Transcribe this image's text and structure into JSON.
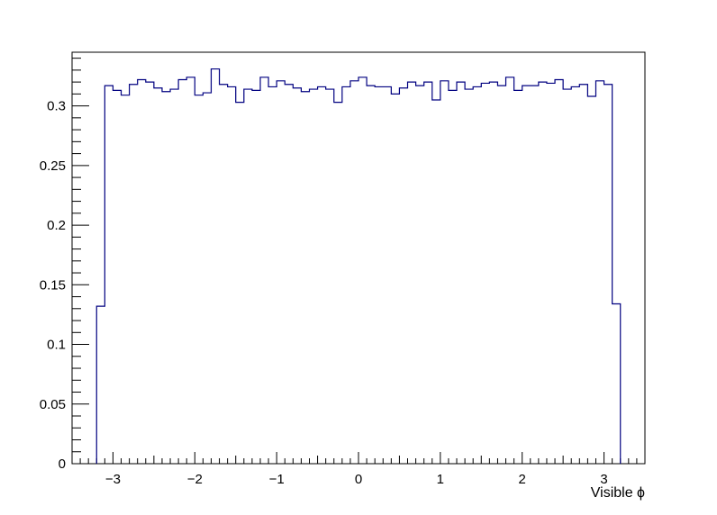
{
  "chart_data": {
    "type": "histogram",
    "xlabel": "Visible ϕ",
    "ylabel": "",
    "title": "",
    "xlim": [
      -3.5,
      3.5
    ],
    "ylim": [
      0,
      0.345
    ],
    "grid": false,
    "line_color": "#000080",
    "x_ticks": [
      -3,
      -2,
      -1,
      0,
      1,
      2,
      3
    ],
    "x_tick_labels": [
      "−3",
      "−2",
      "−1",
      "0",
      "1",
      "2",
      "3"
    ],
    "y_ticks": [
      0,
      0.05,
      0.1,
      0.15,
      0.2,
      0.25,
      0.3
    ],
    "y_tick_labels": [
      "0",
      "0.05",
      "0.1",
      "0.15",
      "0.2",
      "0.25",
      "0.3"
    ],
    "bin_edges": [
      -3.2,
      -3.1,
      -3.0,
      -2.9,
      -2.8,
      -2.7,
      -2.6,
      -2.5,
      -2.4,
      -2.3,
      -2.2,
      -2.1,
      -2.0,
      -1.9,
      -1.8,
      -1.7,
      -1.6,
      -1.5,
      -1.4,
      -1.3,
      -1.2,
      -1.1,
      -1.0,
      -0.9,
      -0.8,
      -0.7,
      -0.6,
      -0.5,
      -0.4,
      -0.3,
      -0.2,
      -0.1,
      0.0,
      0.1,
      0.2,
      0.3,
      0.4,
      0.5,
      0.6,
      0.7,
      0.8,
      0.9,
      1.0,
      1.1,
      1.2,
      1.3,
      1.4,
      1.5,
      1.6,
      1.7,
      1.8,
      1.9,
      2.0,
      2.1,
      2.2,
      2.3,
      2.4,
      2.5,
      2.6,
      2.7,
      2.8,
      2.9,
      3.0,
      3.1,
      3.2
    ],
    "values": [
      0.132,
      0.317,
      0.313,
      0.309,
      0.318,
      0.322,
      0.32,
      0.315,
      0.312,
      0.314,
      0.322,
      0.324,
      0.309,
      0.311,
      0.331,
      0.318,
      0.316,
      0.303,
      0.314,
      0.313,
      0.324,
      0.316,
      0.321,
      0.318,
      0.315,
      0.312,
      0.314,
      0.316,
      0.314,
      0.303,
      0.316,
      0.321,
      0.324,
      0.317,
      0.316,
      0.316,
      0.31,
      0.315,
      0.32,
      0.317,
      0.32,
      0.305,
      0.321,
      0.313,
      0.32,
      0.314,
      0.316,
      0.319,
      0.32,
      0.317,
      0.324,
      0.313,
      0.317,
      0.317,
      0.32,
      0.319,
      0.322,
      0.314,
      0.316,
      0.318,
      0.308,
      0.321,
      0.318,
      0.134
    ]
  }
}
